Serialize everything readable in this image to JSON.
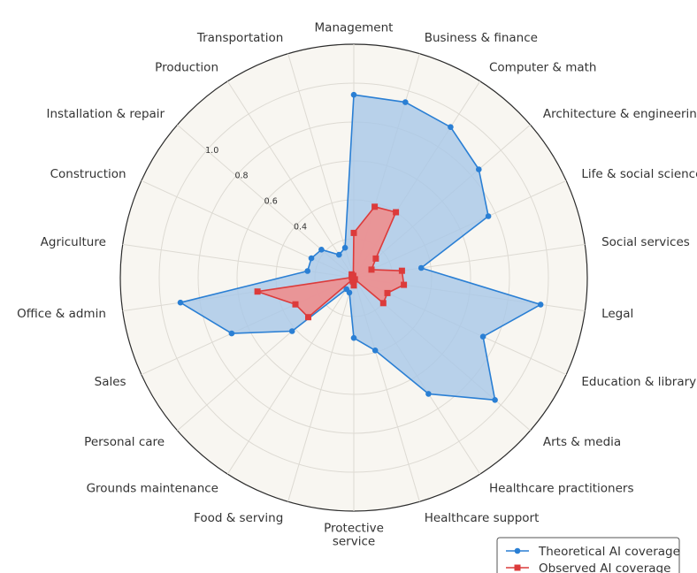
{
  "chart_data": {
    "type": "radar",
    "categories": [
      "Management",
      "Business & finance",
      "Computer & math",
      "Architecture & engineering",
      "Life & social sciences",
      "Social services",
      "Legal",
      "Education & library",
      "Arts & media",
      "Healthcare practitioners",
      "Healthcare support",
      "Protective service",
      "Food & serving",
      "Grounds maintenance",
      "Personal care",
      "Sales",
      "Office & admin",
      "Agriculture",
      "Construction",
      "Installation & repair",
      "Production",
      "Transportation"
    ],
    "category_lines": [
      [
        "Management"
      ],
      [
        "Business & finance"
      ],
      [
        "Computer & math"
      ],
      [
        "Architecture & engineering"
      ],
      [
        "Life & social sciences"
      ],
      [
        "Social services"
      ],
      [
        "Legal"
      ],
      [
        "Education & library"
      ],
      [
        "Arts & media"
      ],
      [
        "Healthcare practitioners"
      ],
      [
        "Healthcare support"
      ],
      [
        "Protective",
        "service"
      ],
      [
        "Food & serving"
      ],
      [
        "Grounds maintenance"
      ],
      [
        "Personal care"
      ],
      [
        "Sales"
      ],
      [
        "Office & admin"
      ],
      [
        "Agriculture"
      ],
      [
        "Construction"
      ],
      [
        "Installation & repair"
      ],
      [
        "Production"
      ],
      [
        "Transportation"
      ]
    ],
    "radial_ticks": [
      "0.4",
      "0.6",
      "0.8",
      "1.0"
    ],
    "rlim": [
      0,
      1.2
    ],
    "grid": true,
    "legend_placement": "bottom-right",
    "series": [
      {
        "name": "Theoretical AI coverage",
        "color": "#2a7fd4",
        "fill": "#a9c8e8",
        "marker": "circle",
        "values": [
          0.94,
          0.94,
          0.92,
          0.85,
          0.76,
          0.35,
          0.97,
          0.73,
          0.96,
          0.71,
          0.39,
          0.31,
          0.08,
          0.07,
          0.42,
          0.69,
          0.9,
          0.24,
          0.24,
          0.22,
          0.14,
          0.16
        ]
      },
      {
        "name": "Observed AI coverage",
        "color": "#dc3b3b",
        "fill": "#ee8e8e",
        "marker": "square",
        "values": [
          0.23,
          0.38,
          0.4,
          0.15,
          0.1,
          0.25,
          0.26,
          0.19,
          0.2,
          0.01,
          0.01,
          0.04,
          0.02,
          0.01,
          0.31,
          0.33,
          0.5,
          0.01,
          0.01,
          0.01,
          0.02,
          0.01
        ]
      }
    ]
  }
}
